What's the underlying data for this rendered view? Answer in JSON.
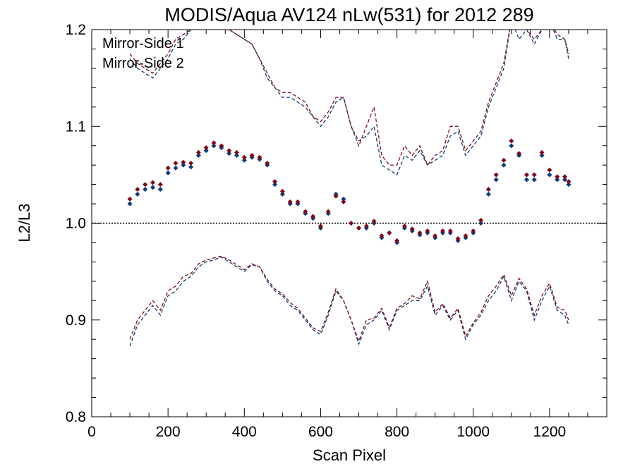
{
  "chart_data": {
    "type": "scatter",
    "title": "MODIS/Aqua AV124 nLw(531) for 2012 289",
    "xlabel": "Scan Pixel",
    "ylabel": "L2/L3",
    "xlim": [
      0,
      1350
    ],
    "ylim": [
      0.8,
      1.2
    ],
    "xticks": [
      0,
      200,
      400,
      600,
      800,
      1000,
      1200
    ],
    "xtick_labels": [
      "0",
      "200",
      "400",
      "600",
      "800",
      "1000",
      "1200"
    ],
    "yticks": [
      0.8,
      0.9,
      1.0,
      1.1,
      1.2
    ],
    "ytick_labels": [
      "0.8",
      "0.9",
      "1.0",
      "1.1",
      "1.2"
    ],
    "reference_line": 1.0,
    "legend_position": "top-left",
    "series": [
      {
        "name": "Mirror-Side 1",
        "color": "#0d3a78",
        "marker": "diamond",
        "x": [
          100,
          120,
          140,
          160,
          180,
          200,
          220,
          240,
          260,
          280,
          300,
          320,
          340,
          360,
          380,
          400,
          420,
          440,
          460,
          480,
          500,
          520,
          540,
          560,
          580,
          600,
          620,
          640,
          660,
          680,
          700,
          720,
          740,
          760,
          780,
          800,
          820,
          840,
          860,
          880,
          900,
          920,
          940,
          960,
          980,
          1000,
          1020,
          1040,
          1060,
          1080,
          1100,
          1120,
          1140,
          1160,
          1180,
          1200,
          1220,
          1240,
          1250
        ],
        "y": [
          1.02,
          1.03,
          1.035,
          1.037,
          1.035,
          1.052,
          1.057,
          1.06,
          1.058,
          1.07,
          1.075,
          1.08,
          1.078,
          1.072,
          1.07,
          1.065,
          1.068,
          1.066,
          1.06,
          1.04,
          1.03,
          1.02,
          1.02,
          1.01,
          1.005,
          0.995,
          1.01,
          1.03,
          1.025,
          1.0,
          0.995,
          0.995,
          1.0,
          0.985,
          0.99,
          0.98,
          0.995,
          0.992,
          0.988,
          0.99,
          0.985,
          0.99,
          0.99,
          0.982,
          0.985,
          0.99,
          1.0,
          1.03,
          1.045,
          1.06,
          1.08,
          1.07,
          1.045,
          1.045,
          1.07,
          1.05,
          1.045,
          1.045,
          1.04
        ]
      },
      {
        "name": "Mirror-Side 2",
        "color": "#7a0a1a",
        "marker": "diamond",
        "x": [
          100,
          120,
          140,
          160,
          180,
          200,
          220,
          240,
          260,
          280,
          300,
          320,
          340,
          360,
          380,
          400,
          420,
          440,
          460,
          480,
          500,
          520,
          540,
          560,
          580,
          600,
          620,
          640,
          660,
          680,
          700,
          720,
          740,
          760,
          780,
          800,
          820,
          840,
          860,
          880,
          900,
          920,
          940,
          960,
          980,
          1000,
          1020,
          1040,
          1060,
          1080,
          1100,
          1120,
          1140,
          1160,
          1180,
          1200,
          1220,
          1240,
          1250
        ],
        "y": [
          1.025,
          1.035,
          1.04,
          1.042,
          1.04,
          1.057,
          1.062,
          1.063,
          1.062,
          1.073,
          1.078,
          1.083,
          1.08,
          1.075,
          1.073,
          1.068,
          1.07,
          1.068,
          1.062,
          1.043,
          1.033,
          1.022,
          1.022,
          1.012,
          1.007,
          0.997,
          1.012,
          1.028,
          1.022,
          1.0,
          0.995,
          0.997,
          1.002,
          0.987,
          0.99,
          0.982,
          0.997,
          0.994,
          0.99,
          0.992,
          0.987,
          0.992,
          0.992,
          0.984,
          0.987,
          0.992,
          1.003,
          1.035,
          1.05,
          1.065,
          1.085,
          1.072,
          1.05,
          1.05,
          1.073,
          1.055,
          1.048,
          1.048,
          1.043
        ]
      },
      {
        "name": "Mirror-Side 1 upper envelope",
        "color": "#0d3a78",
        "style": "dashed",
        "x": [
          100,
          120,
          140,
          160,
          180,
          200,
          220,
          240,
          260,
          280,
          300,
          320,
          340,
          360,
          380,
          400,
          420,
          440,
          460,
          480,
          500,
          520,
          540,
          560,
          580,
          600,
          620,
          640,
          660,
          680,
          700,
          720,
          740,
          760,
          780,
          800,
          820,
          840,
          860,
          880,
          900,
          920,
          940,
          960,
          980,
          1000,
          1020,
          1040,
          1060,
          1080,
          1100,
          1120,
          1140,
          1160,
          1180,
          1200,
          1220,
          1240,
          1250
        ],
        "y": [
          1.17,
          1.16,
          1.155,
          1.15,
          1.16,
          1.17,
          1.185,
          1.19,
          1.2,
          1.21,
          1.21,
          1.205,
          1.2,
          1.2,
          1.195,
          1.19,
          1.185,
          1.17,
          1.15,
          1.14,
          1.13,
          1.13,
          1.125,
          1.12,
          1.11,
          1.1,
          1.11,
          1.125,
          1.13,
          1.1,
          1.085,
          1.09,
          1.1,
          1.06,
          1.055,
          1.05,
          1.07,
          1.065,
          1.075,
          1.06,
          1.065,
          1.07,
          1.09,
          1.095,
          1.07,
          1.08,
          1.09,
          1.12,
          1.14,
          1.16,
          1.21,
          1.19,
          1.2,
          1.185,
          1.2,
          1.21,
          1.19,
          1.19,
          1.17
        ]
      },
      {
        "name": "Mirror-Side 2 upper envelope",
        "color": "#7a0a1a",
        "style": "dashed",
        "x": [
          100,
          120,
          140,
          160,
          180,
          200,
          220,
          240,
          260,
          280,
          300,
          320,
          340,
          360,
          380,
          400,
          420,
          440,
          460,
          480,
          500,
          520,
          540,
          560,
          580,
          600,
          620,
          640,
          660,
          680,
          700,
          720,
          740,
          760,
          780,
          800,
          820,
          840,
          860,
          880,
          900,
          920,
          940,
          960,
          980,
          1000,
          1020,
          1040,
          1060,
          1080,
          1100,
          1120,
          1140,
          1160,
          1180,
          1200,
          1220,
          1240,
          1250
        ],
        "y": [
          1.175,
          1.165,
          1.16,
          1.155,
          1.165,
          1.175,
          1.19,
          1.195,
          1.2,
          1.21,
          1.21,
          1.205,
          1.2,
          1.2,
          1.195,
          1.19,
          1.185,
          1.17,
          1.155,
          1.14,
          1.135,
          1.135,
          1.13,
          1.125,
          1.11,
          1.105,
          1.115,
          1.13,
          1.13,
          1.1,
          1.08,
          1.1,
          1.12,
          1.07,
          1.06,
          1.06,
          1.08,
          1.07,
          1.08,
          1.06,
          1.07,
          1.075,
          1.1,
          1.1,
          1.075,
          1.085,
          1.095,
          1.125,
          1.145,
          1.165,
          1.21,
          1.2,
          1.2,
          1.19,
          1.2,
          1.21,
          1.195,
          1.19,
          1.175
        ]
      },
      {
        "name": "Mirror-Side 1 lower envelope",
        "color": "#0d3a78",
        "style": "dashed",
        "x": [
          100,
          120,
          140,
          160,
          180,
          200,
          220,
          240,
          260,
          280,
          300,
          320,
          340,
          360,
          380,
          400,
          420,
          440,
          460,
          480,
          500,
          520,
          540,
          560,
          580,
          600,
          620,
          640,
          660,
          680,
          700,
          720,
          740,
          760,
          780,
          800,
          820,
          840,
          860,
          880,
          900,
          920,
          940,
          960,
          980,
          1000,
          1020,
          1040,
          1060,
          1080,
          1100,
          1120,
          1140,
          1160,
          1180,
          1200,
          1220,
          1240,
          1250
        ],
        "y": [
          0.873,
          0.895,
          0.905,
          0.915,
          0.905,
          0.925,
          0.93,
          0.94,
          0.945,
          0.955,
          0.96,
          0.962,
          0.965,
          0.96,
          0.955,
          0.95,
          0.957,
          0.955,
          0.94,
          0.93,
          0.925,
          0.915,
          0.91,
          0.9,
          0.89,
          0.885,
          0.905,
          0.93,
          0.92,
          0.9,
          0.875,
          0.895,
          0.9,
          0.91,
          0.89,
          0.91,
          0.915,
          0.92,
          0.92,
          0.935,
          0.905,
          0.915,
          0.9,
          0.91,
          0.88,
          0.895,
          0.905,
          0.92,
          0.93,
          0.945,
          0.92,
          0.94,
          0.93,
          0.9,
          0.92,
          0.935,
          0.91,
          0.905,
          0.895
        ]
      },
      {
        "name": "Mirror-Side 2 lower envelope",
        "color": "#7a0a1a",
        "style": "dashed",
        "x": [
          100,
          120,
          140,
          160,
          180,
          200,
          220,
          240,
          260,
          280,
          300,
          320,
          340,
          360,
          380,
          400,
          420,
          440,
          460,
          480,
          500,
          520,
          540,
          560,
          580,
          600,
          620,
          640,
          660,
          680,
          700,
          720,
          740,
          760,
          780,
          800,
          820,
          840,
          860,
          880,
          900,
          920,
          940,
          960,
          980,
          1000,
          1020,
          1040,
          1060,
          1080,
          1100,
          1120,
          1140,
          1160,
          1180,
          1200,
          1220,
          1240,
          1250
        ],
        "y": [
          0.88,
          0.9,
          0.91,
          0.92,
          0.91,
          0.93,
          0.935,
          0.945,
          0.948,
          0.958,
          0.962,
          0.964,
          0.966,
          0.962,
          0.957,
          0.952,
          0.958,
          0.955,
          0.942,
          0.932,
          0.927,
          0.918,
          0.912,
          0.902,
          0.892,
          0.888,
          0.908,
          0.932,
          0.92,
          0.9,
          0.878,
          0.9,
          0.902,
          0.912,
          0.892,
          0.912,
          0.917,
          0.925,
          0.922,
          0.94,
          0.908,
          0.917,
          0.902,
          0.912,
          0.883,
          0.897,
          0.908,
          0.925,
          0.935,
          0.947,
          0.925,
          0.943,
          0.932,
          0.905,
          0.925,
          0.938,
          0.913,
          0.91,
          0.9
        ]
      }
    ]
  }
}
